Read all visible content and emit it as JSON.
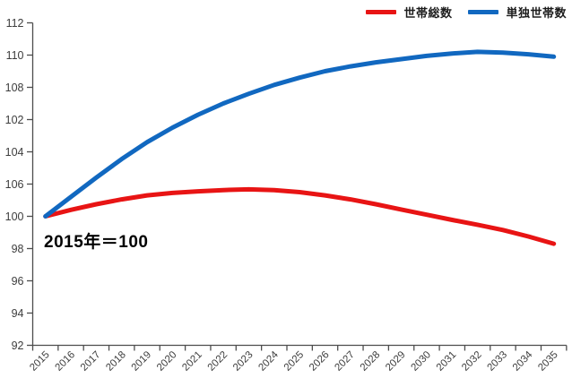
{
  "annotation": {
    "text": "2015年＝100"
  },
  "chart_data": {
    "type": "line",
    "x": [
      "2015",
      "2016",
      "2017",
      "2018",
      "2019",
      "2020",
      "2021",
      "2022",
      "2023",
      "2024",
      "2025",
      "2026",
      "2027",
      "2028",
      "2029",
      "2030",
      "2031",
      "2032",
      "2033",
      "2034",
      "2035"
    ],
    "y_tick_labels_top_to_bottom": [
      "112",
      "110",
      "108",
      "102",
      "104",
      "106",
      "100",
      "98",
      "96",
      "94",
      "92"
    ],
    "ylim": [
      92,
      112
    ],
    "grid": false,
    "legend_position": "top-right",
    "annotation": "2015年＝100",
    "axis_color": "#4d4d4d",
    "tick_label_color": "#3d3d3d",
    "series": [
      {
        "name": "世帯総数",
        "color": "#e81414",
        "values": [
          100.0,
          100.4,
          100.75,
          101.05,
          101.3,
          101.45,
          101.55,
          101.63,
          101.67,
          101.62,
          101.5,
          101.3,
          101.05,
          100.75,
          100.42,
          100.1,
          99.78,
          99.48,
          99.15,
          98.75,
          98.3
        ]
      },
      {
        "name": "単独世帯数",
        "color": "#1168c0",
        "values": [
          100.0,
          101.2,
          102.4,
          103.55,
          104.6,
          105.5,
          106.3,
          107.0,
          107.6,
          108.15,
          108.6,
          109.0,
          109.3,
          109.55,
          109.75,
          109.95,
          110.1,
          110.2,
          110.15,
          110.05,
          109.9
        ]
      }
    ]
  }
}
